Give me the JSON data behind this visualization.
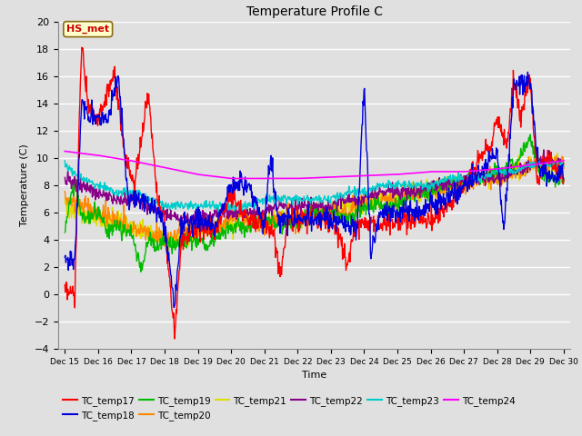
{
  "title": "Temperature Profile C",
  "xlabel": "Time",
  "ylabel": "Temperature (C)",
  "ylim": [
    -4,
    20
  ],
  "yticks": [
    -4,
    -2,
    0,
    2,
    4,
    6,
    8,
    10,
    12,
    14,
    16,
    18,
    20
  ],
  "bg_color": "#e0e0e0",
  "series": {
    "TC_temp17": {
      "color": "#ff0000",
      "lw": 1.0
    },
    "TC_temp18": {
      "color": "#0000dd",
      "lw": 1.0
    },
    "TC_temp19": {
      "color": "#00bb00",
      "lw": 1.0
    },
    "TC_temp20": {
      "color": "#ff8800",
      "lw": 1.0
    },
    "TC_temp21": {
      "color": "#dddd00",
      "lw": 1.0
    },
    "TC_temp22": {
      "color": "#880088",
      "lw": 1.0
    },
    "TC_temp23": {
      "color": "#00cccc",
      "lw": 1.0
    },
    "TC_temp24": {
      "color": "#ff00ff",
      "lw": 1.2
    }
  },
  "annotation": "HS_met",
  "xtick_labels": [
    "Dec 15",
    "Dec 16",
    "Dec 17",
    "Dec 18",
    "Dec 19",
    "Dec 20",
    "Dec 21",
    "Dec 22",
    "Dec 23",
    "Dec 24",
    "Dec 25",
    "Dec 26",
    "Dec 27",
    "Dec 28",
    "Dec 29",
    "Dec 30"
  ],
  "xtick_positions": [
    15,
    16,
    17,
    18,
    19,
    20,
    21,
    22,
    23,
    24,
    25,
    26,
    27,
    28,
    29,
    30
  ]
}
